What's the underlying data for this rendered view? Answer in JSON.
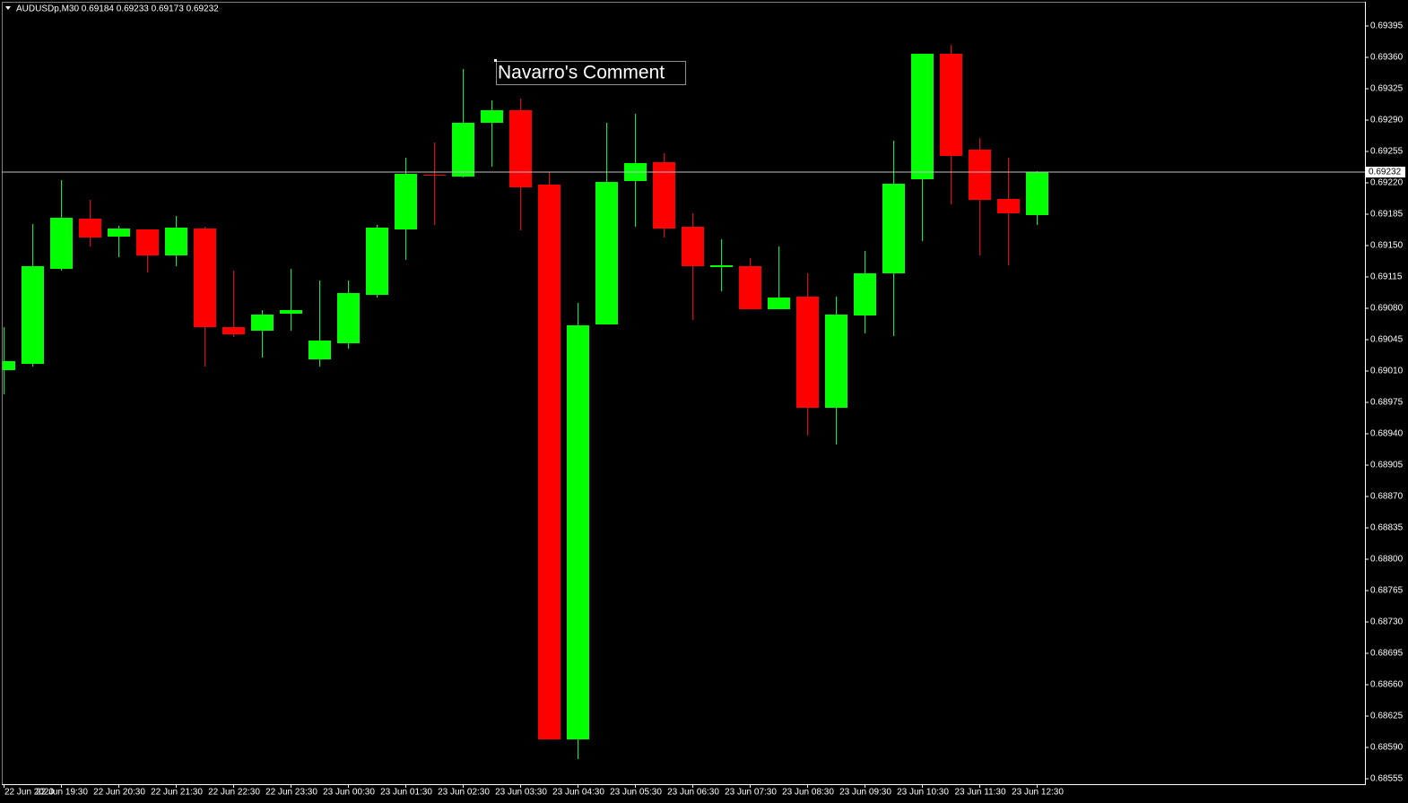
{
  "chart_data": {
    "type": "candlestick",
    "title": "AUDUSDp,M30  0.69184 0.69233 0.69173 0.69232",
    "annotation": "Navarro's Comment",
    "categories": [
      "22 Jun 2020",
      null,
      "22 Jun 19:30",
      null,
      "22 Jun 20:30",
      null,
      "22 Jun 21:30",
      null,
      "22 Jun 22:30",
      null,
      "22 Jun 23:30",
      null,
      "23 Jun 00:30",
      null,
      "23 Jun 01:30",
      null,
      "23 Jun 02:30",
      null,
      "23 Jun 03:30",
      null,
      "23 Jun 04:30",
      null,
      "23 Jun 05:30",
      null,
      "23 Jun 06:30",
      null,
      "23 Jun 07:30",
      null,
      "23 Jun 08:30",
      null,
      "23 Jun 09:30",
      null,
      "23 Jun 10:30",
      null,
      "23 Jun 11:30",
      null,
      "23 Jun 12:30"
    ],
    "open": [
      0.69011,
      0.69018,
      0.69124,
      0.6918,
      0.6916,
      0.69168,
      0.69139,
      0.69169,
      0.69059,
      0.69055,
      0.69074,
      0.69023,
      0.69041,
      0.69095,
      0.69168,
      0.69229,
      0.69227,
      0.69287,
      0.69301,
      0.69218,
      0.68599,
      0.69062,
      0.69222,
      0.69243,
      0.69171,
      0.69126,
      0.69127,
      0.69079,
      0.69093,
      0.68969,
      0.69072,
      0.69119,
      0.69224,
      0.69364,
      0.69257,
      0.69202,
      0.69184
    ],
    "high": [
      0.69059,
      0.69174,
      0.69223,
      0.69201,
      0.69172,
      0.69168,
      0.69183,
      0.69171,
      0.69122,
      0.69078,
      0.69124,
      0.69111,
      0.69111,
      0.69173,
      0.69248,
      0.69265,
      0.69347,
      0.69312,
      0.69314,
      0.69232,
      0.69086,
      0.69287,
      0.69297,
      0.69253,
      0.69186,
      0.69157,
      0.69136,
      0.69149,
      0.69119,
      0.69093,
      0.69144,
      0.69267,
      0.69364,
      0.69374,
      0.6927,
      0.69248,
      0.69233
    ],
    "low": [
      0.68984,
      0.69015,
      0.69122,
      0.69149,
      0.69137,
      0.6912,
      0.69127,
      0.69015,
      0.69048,
      0.69025,
      0.69055,
      0.69015,
      0.69035,
      0.69092,
      0.69134,
      0.69173,
      0.69226,
      0.69238,
      0.69167,
      0.68599,
      0.68577,
      0.69062,
      0.69171,
      0.69159,
      0.69067,
      0.69099,
      0.69079,
      0.69079,
      0.68938,
      0.68928,
      0.69052,
      0.69049,
      0.69155,
      0.69196,
      0.69139,
      0.69128,
      0.69173
    ],
    "close": [
      0.69021,
      0.69127,
      0.69181,
      0.69159,
      0.69169,
      0.69139,
      0.6917,
      0.69059,
      0.69051,
      0.69073,
      0.69078,
      0.69044,
      0.69097,
      0.6917,
      0.6923,
      0.69228,
      0.69287,
      0.69301,
      0.69215,
      0.68599,
      0.69061,
      0.69221,
      0.69242,
      0.69169,
      0.69127,
      0.69128,
      0.69079,
      0.69092,
      0.68969,
      0.69073,
      0.69119,
      0.69219,
      0.69364,
      0.6925,
      0.69201,
      0.69186,
      0.69232
    ],
    "up_color": "#00ff00",
    "down_color": "#ff0000",
    "last_price": 0.69232,
    "ylim": [
      0.68549,
      0.69422
    ],
    "yticks": [
      0.69395,
      {
        "value": 0.6936,
        "label": "0.69360"
      },
      0.69325,
      {
        "value": 0.6929,
        "label": "0.69290"
      },
      0.69255,
      {
        "value": 0.6922,
        "label": "0.69220"
      },
      0.69185,
      {
        "value": 0.6915,
        "label": "0.69150"
      },
      0.69115,
      {
        "value": 0.6908,
        "label": "0.69080"
      },
      0.69045,
      {
        "value": 0.6901,
        "label": "0.69010"
      },
      0.68975,
      {
        "value": 0.6894,
        "label": "0.68940"
      },
      0.68905,
      {
        "value": 0.6887,
        "label": "0.68870"
      },
      0.68835,
      {
        "value": 0.688,
        "label": "0.68800"
      },
      0.68765,
      {
        "value": 0.6873,
        "label": "0.68730"
      },
      0.68695,
      {
        "value": 0.6866,
        "label": "0.68660"
      },
      0.68625,
      {
        "value": 0.6859,
        "label": "0.68590"
      },
      0.68555
    ],
    "grid": false
  }
}
